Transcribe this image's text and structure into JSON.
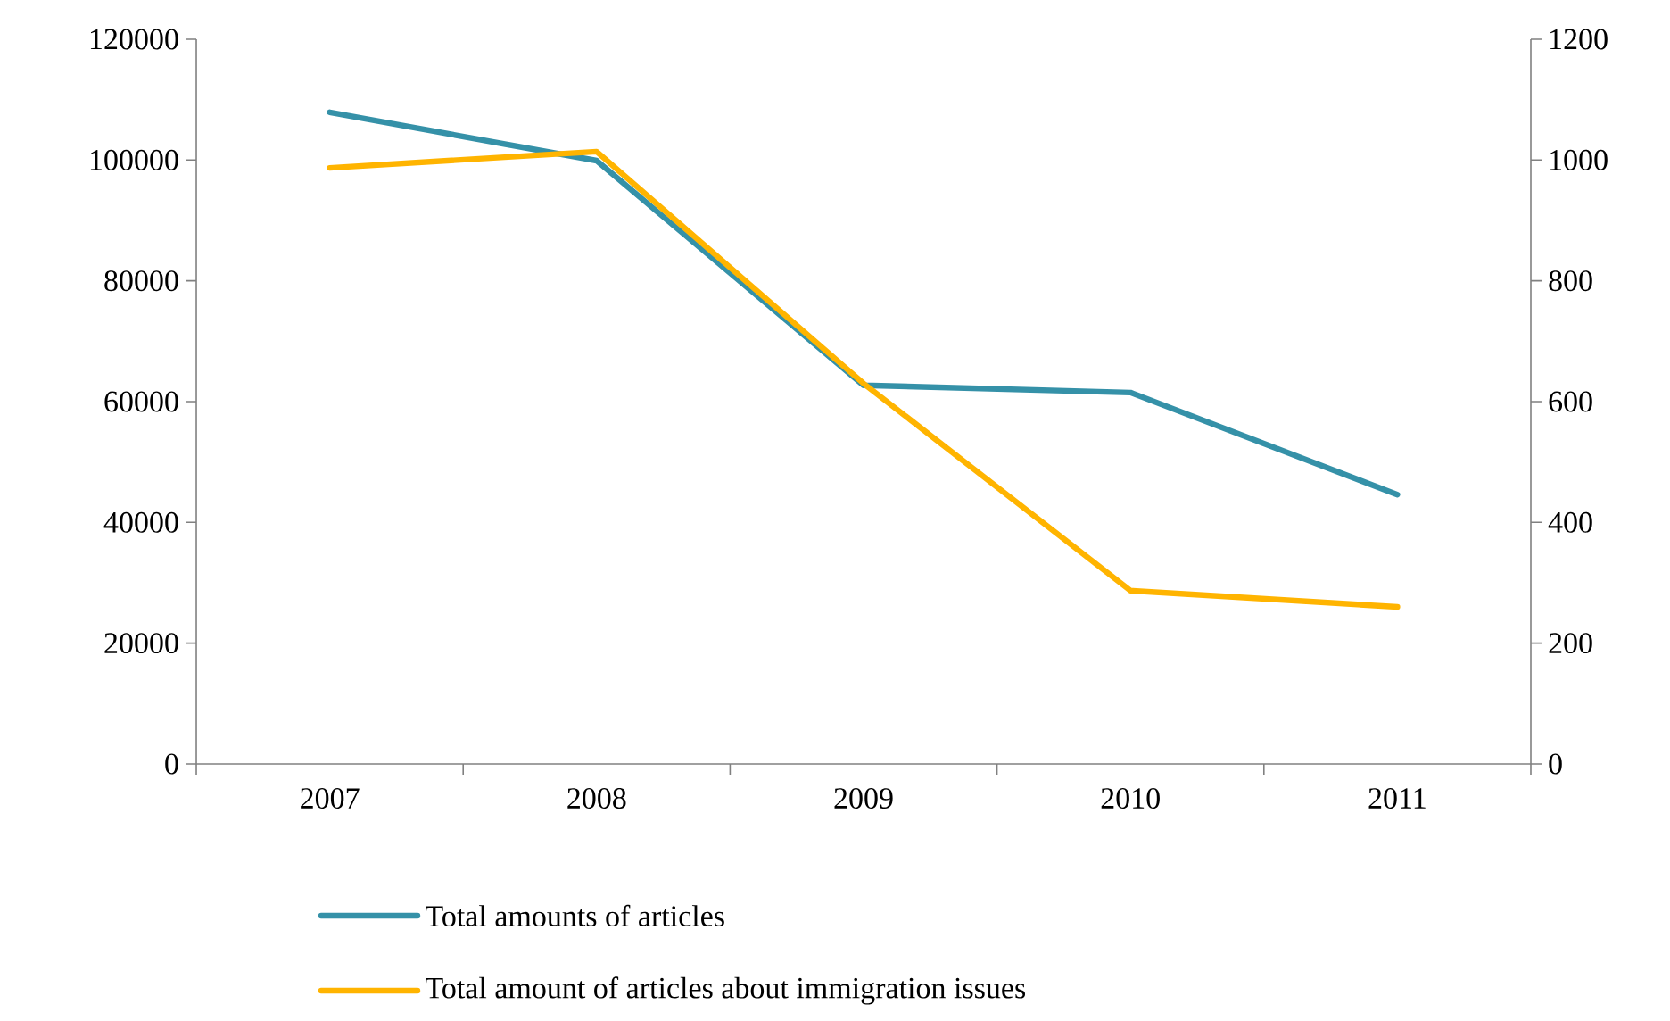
{
  "chart_data": {
    "type": "line",
    "categories": [
      "2007",
      "2008",
      "2009",
      "2010",
      "2011"
    ],
    "series": [
      {
        "name": "Total amounts of articles",
        "color": "#3591a8",
        "values": [
          107900,
          99900,
          62700,
          61500,
          44600
        ]
      },
      {
        "name": "Total amount of articles about immigration issues",
        "color": "#ffb400",
        "axis": "y2",
        "values": [
          987,
          1014,
          630,
          287,
          260
        ]
      }
    ],
    "ylim": [
      0,
      120000
    ],
    "yticks": [
      0,
      20000,
      40000,
      60000,
      80000,
      100000,
      120000
    ],
    "y2lim": [
      0,
      1200
    ],
    "y2ticks": [
      0,
      200,
      400,
      600,
      800,
      1000,
      1200
    ],
    "grid": false,
    "legend": "bottom",
    "marker": "none",
    "line_style": "solid"
  }
}
